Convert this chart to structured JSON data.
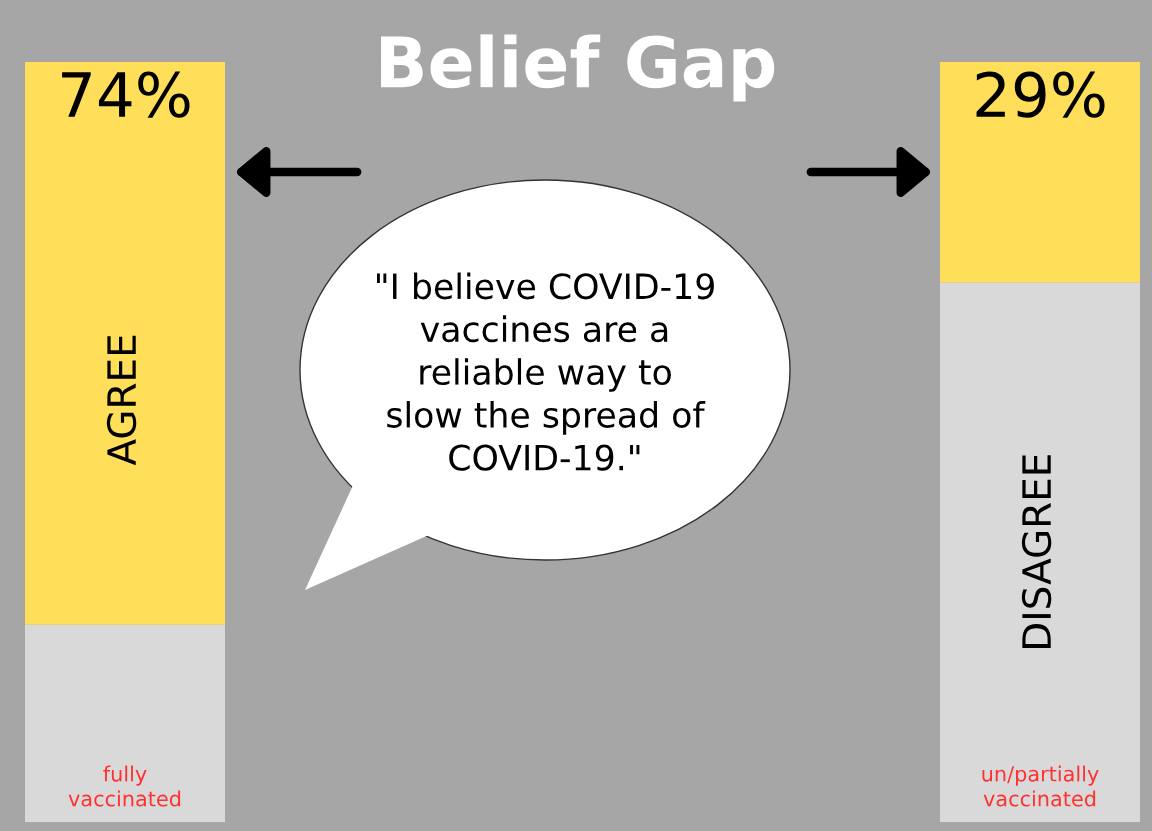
{
  "chart_data": {
    "type": "bar",
    "title": "Belief Gap",
    "stacked": true,
    "categories": [
      "fully vaccinated",
      "un/partially vaccinated"
    ],
    "series": [
      {
        "color": "#d9d9d9",
        "values": [
          26,
          71
        ]
      },
      {
        "color": "#ffde59",
        "values": [
          74,
          29
        ],
        "value_labels": [
          "74%",
          "29%"
        ]
      }
    ],
    "ylim": [
      0,
      100
    ],
    "legend": false,
    "annotations": [
      "AGREE",
      "DISAGREE",
      "\"I believe COVID-19 vaccines are a reliable way to slow the spread of COVID-19.\""
    ]
  }
}
